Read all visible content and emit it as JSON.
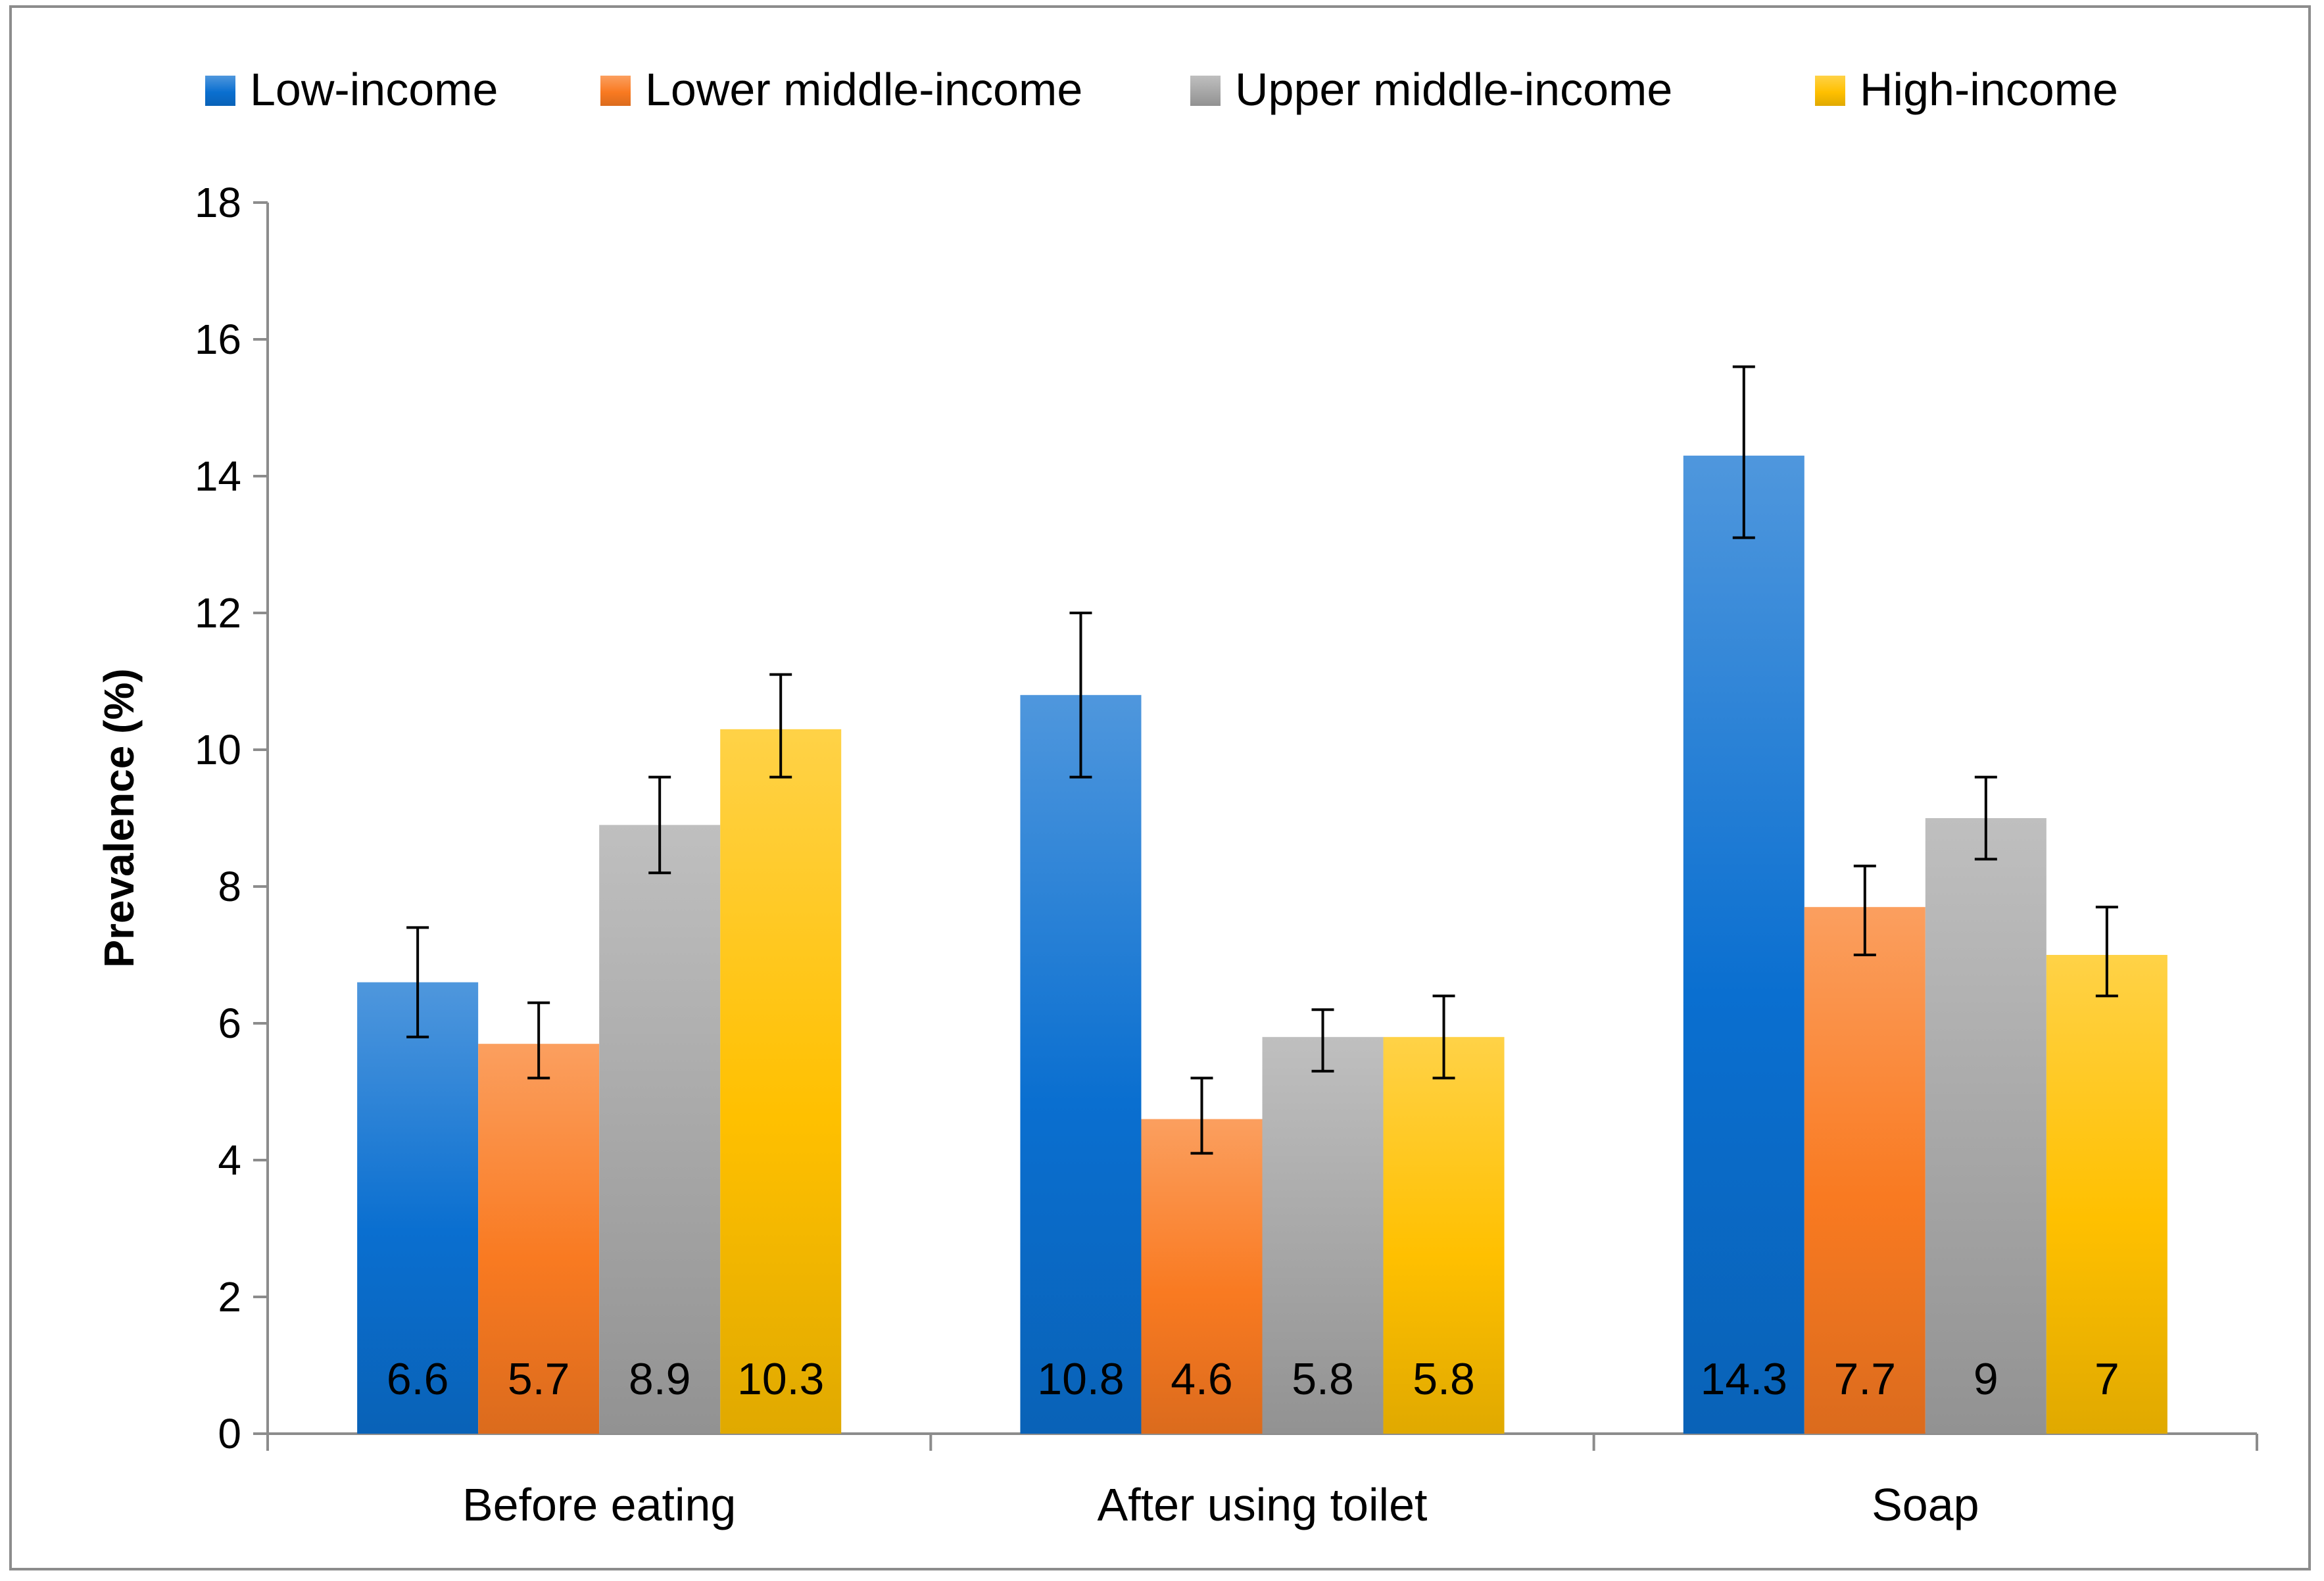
{
  "chart_data": {
    "type": "bar",
    "categories": [
      "Before eating",
      "After using toilet",
      "Soap"
    ],
    "series": [
      {
        "name": "Low-income",
        "color": "#0a6fd0",
        "values": [
          6.6,
          10.8,
          14.3
        ],
        "err_low": [
          5.8,
          9.6,
          13.1
        ],
        "err_high": [
          7.4,
          12.0,
          15.6
        ],
        "labels": [
          "6.6",
          "10.8",
          "14.3"
        ]
      },
      {
        "name": "Lower middle-income",
        "color": "#f97a21",
        "values": [
          5.7,
          4.6,
          7.7
        ],
        "err_low": [
          5.2,
          4.1,
          7.0
        ],
        "err_high": [
          6.3,
          5.2,
          8.3
        ],
        "labels": [
          "5.7",
          "4.6",
          "7.7"
        ]
      },
      {
        "name": "Upper middle-income",
        "color": "#a6a6a6",
        "values": [
          8.9,
          5.8,
          9.0
        ],
        "err_low": [
          8.2,
          5.3,
          8.4
        ],
        "err_high": [
          9.6,
          6.2,
          9.6
        ],
        "labels": [
          "8.9",
          "5.8",
          "9"
        ]
      },
      {
        "name": "High-income",
        "color": "#ffc000",
        "values": [
          10.3,
          5.8,
          7.0
        ],
        "err_low": [
          9.6,
          5.2,
          6.4
        ],
        "err_high": [
          11.1,
          6.4,
          7.7
        ],
        "labels": [
          "10.3",
          "5.8",
          "7"
        ]
      }
    ],
    "title": "",
    "xlabel": "",
    "ylabel": "Prevalence (%)",
    "ylim": [
      0,
      18
    ],
    "yticks": [
      0,
      2,
      4,
      6,
      8,
      10,
      12,
      14,
      16,
      18
    ],
    "grid": false,
    "legend": "top"
  }
}
